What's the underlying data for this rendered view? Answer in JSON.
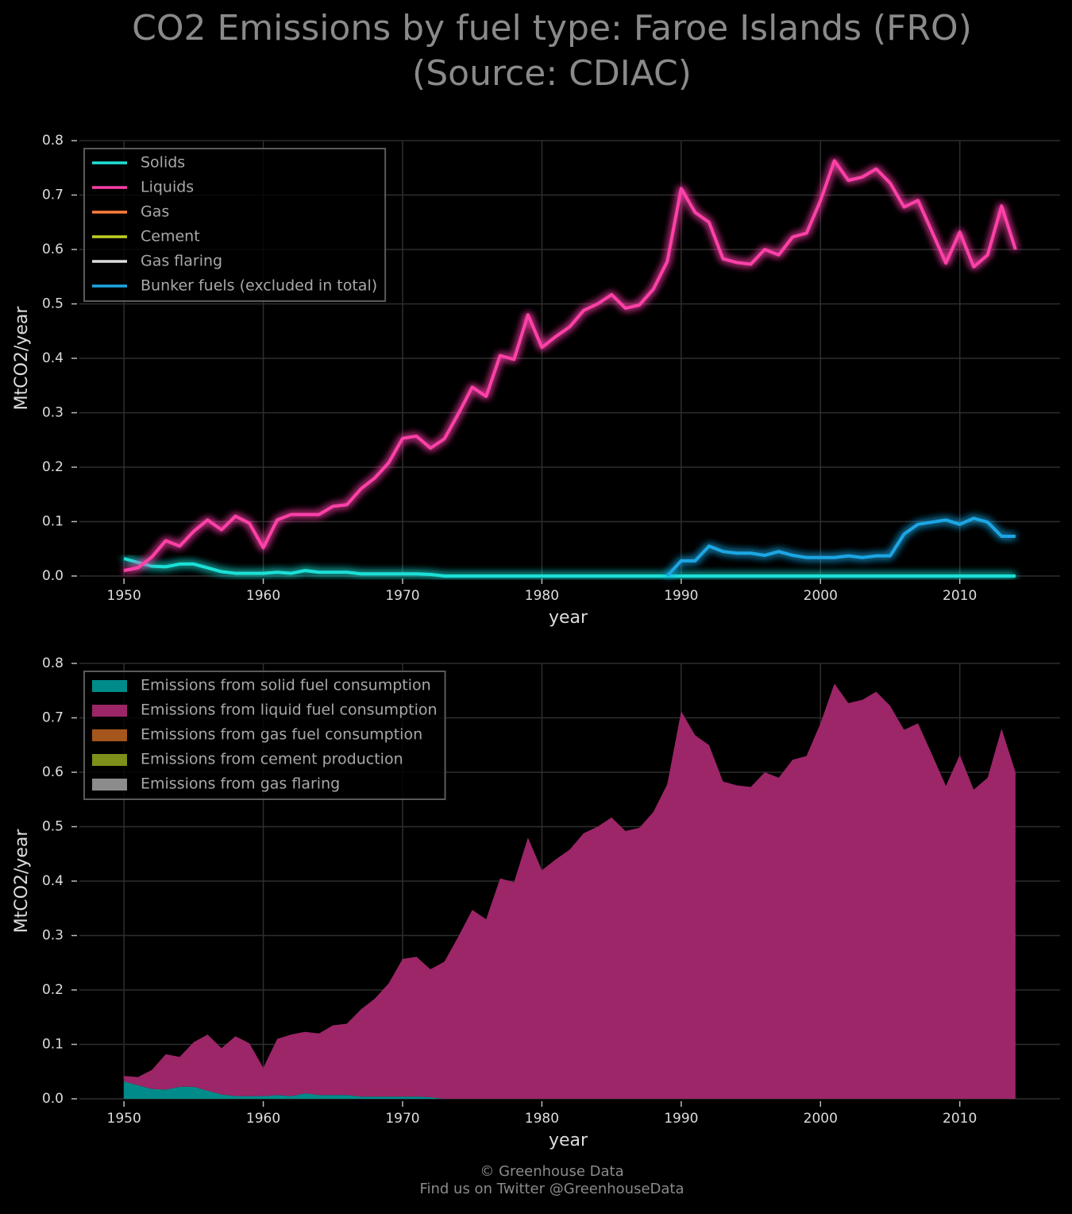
{
  "title": [
    "CO2 Emissions by fuel type: Faroe Islands (FRO)",
    "(Source: CDIAC)"
  ],
  "footer": [
    "© Greenhouse Data",
    "Find us on Twitter @GreenhouseData"
  ],
  "chart_data": [
    {
      "type": "line",
      "xlabel": "year",
      "ylabel": "MtCO2/year",
      "legend": "upper left",
      "grid": true,
      "glow": true,
      "xlim": [
        1946.8,
        2017.2
      ],
      "xticks": [
        1950,
        1960,
        1970,
        1980,
        1990,
        2000,
        2010
      ],
      "ylim": [
        0,
        0.8
      ],
      "yticks": [
        {
          "value": 0,
          "label": "0.0"
        },
        0.1,
        0.2,
        0.3,
        0.4,
        0.5,
        0.6,
        0.7,
        0.8
      ],
      "x": [
        1950,
        1951,
        1952,
        1953,
        1954,
        1955,
        1956,
        1957,
        1958,
        1959,
        1960,
        1961,
        1962,
        1963,
        1964,
        1965,
        1966,
        1967,
        1968,
        1969,
        1970,
        1971,
        1972,
        1973,
        1974,
        1975,
        1976,
        1977,
        1978,
        1979,
        1980,
        1981,
        1982,
        1983,
        1984,
        1985,
        1986,
        1987,
        1988,
        1989,
        1990,
        1991,
        1992,
        1993,
        1994,
        1995,
        1996,
        1997,
        1998,
        1999,
        2000,
        2001,
        2002,
        2003,
        2004,
        2005,
        2006,
        2007,
        2008,
        2009,
        2010,
        2011,
        2012,
        2013,
        2014
      ],
      "series": [
        {
          "name": "Solids",
          "color": "#1fe0d6",
          "values": [
            0.032,
            0.025,
            0.018,
            0.017,
            0.022,
            0.022,
            0.015,
            0.008,
            0.005,
            0.005,
            0.005,
            0.007,
            0.005,
            0.01,
            0.007,
            0.007,
            0.007,
            0.004,
            0.004,
            0.004,
            0.004,
            0.004,
            0.003,
            0,
            0,
            0,
            0,
            0,
            0,
            0,
            0,
            0,
            0,
            0,
            0,
            0,
            0,
            0,
            0,
            0,
            0,
            0,
            0,
            0,
            0,
            0,
            0,
            0,
            0,
            0,
            0,
            0,
            0,
            0,
            0,
            0,
            0,
            0,
            0,
            0,
            0,
            0,
            0,
            0,
            0
          ]
        },
        {
          "name": "Liquids",
          "color": "#ff40a8",
          "values": [
            0.01,
            0.015,
            0.035,
            0.065,
            0.055,
            0.082,
            0.103,
            0.085,
            0.11,
            0.097,
            0.052,
            0.103,
            0.113,
            0.113,
            0.113,
            0.128,
            0.131,
            0.16,
            0.18,
            0.208,
            0.253,
            0.257,
            0.235,
            0.252,
            0.298,
            0.347,
            0.33,
            0.405,
            0.398,
            0.48,
            0.42,
            0.44,
            0.458,
            0.488,
            0.5,
            0.517,
            0.492,
            0.498,
            0.527,
            0.578,
            0.712,
            0.668,
            0.65,
            0.583,
            0.576,
            0.573,
            0.6,
            0.59,
            0.623,
            0.63,
            0.69,
            0.763,
            0.727,
            0.733,
            0.748,
            0.722,
            0.678,
            0.69,
            0.633,
            0.575,
            0.632,
            0.568,
            0.59,
            0.68,
            0.6
          ]
        },
        {
          "name": "Gas",
          "color": "#ff7f3a",
          "values": [
            0,
            0,
            0,
            0,
            0,
            0,
            0,
            0,
            0,
            0,
            0,
            0,
            0,
            0,
            0,
            0,
            0,
            0,
            0,
            0,
            0,
            0,
            0,
            0,
            0,
            0,
            0,
            0,
            0,
            0,
            0,
            0,
            0,
            0,
            0,
            0,
            0,
            0,
            0,
            0,
            0,
            0,
            0,
            0,
            0,
            0,
            0,
            0,
            0,
            0,
            0,
            0,
            0,
            0,
            0,
            0,
            0,
            0,
            0,
            0,
            0,
            0,
            0,
            0,
            0
          ]
        },
        {
          "name": "Gas flaring",
          "color": "#dddddd",
          "values": [
            0,
            0,
            0,
            0,
            0,
            0,
            0,
            0,
            0,
            0,
            0,
            0,
            0,
            0,
            0,
            0,
            0,
            0,
            0,
            0,
            0,
            0,
            0,
            0,
            0,
            0,
            0,
            0,
            0,
            0,
            0,
            0,
            0,
            0,
            0,
            0,
            0,
            0,
            0,
            0,
            0,
            0,
            0,
            0,
            0,
            0,
            0,
            0,
            0,
            0,
            0,
            0,
            0,
            0,
            0,
            0,
            0,
            0,
            0,
            0,
            0,
            0,
            0,
            0,
            0
          ]
        },
        {
          "name": "Cement",
          "color": "#c2d024",
          "values": [
            0,
            0,
            0,
            0,
            0,
            0,
            0,
            0,
            0,
            0,
            0,
            0,
            0,
            0,
            0,
            0,
            0,
            0,
            0,
            0,
            0,
            0,
            0,
            0,
            0,
            0,
            0,
            0,
            0,
            0,
            0,
            0,
            0,
            0,
            0,
            0,
            0,
            0,
            0,
            0,
            0,
            0,
            0,
            0,
            0,
            0,
            0,
            0,
            0,
            0,
            0,
            0,
            0,
            0,
            0,
            0,
            0,
            0,
            0,
            0,
            0,
            0,
            0,
            0,
            0
          ]
        },
        {
          "name": "Bunker fuels (excluded in total)",
          "color": "#1ea6e4",
          "values": [
            null,
            null,
            null,
            null,
            null,
            null,
            null,
            null,
            null,
            null,
            null,
            null,
            null,
            null,
            null,
            null,
            null,
            null,
            null,
            null,
            null,
            null,
            null,
            null,
            null,
            null,
            null,
            null,
            null,
            null,
            null,
            null,
            null,
            null,
            null,
            null,
            null,
            null,
            null,
            0,
            0.028,
            0.028,
            0.055,
            0.045,
            0.042,
            0.042,
            0.038,
            0.045,
            0.038,
            0.034,
            0.034,
            0.034,
            0.037,
            0.034,
            0.037,
            0.037,
            0.077,
            0.095,
            0.099,
            0.103,
            0.095,
            0.106,
            0.099,
            0.073,
            0.073
          ]
        }
      ],
      "legend_order": [
        0,
        1,
        2,
        4,
        3,
        5
      ]
    },
    {
      "type": "stacked_area",
      "xlabel": "year",
      "ylabel": "MtCO2/year",
      "legend": "upper left",
      "grid": true,
      "xlim": [
        1946.8,
        2017.2
      ],
      "xticks": [
        1950,
        1960,
        1970,
        1980,
        1990,
        2000,
        2010
      ],
      "ylim": [
        0,
        0.8
      ],
      "yticks": [
        {
          "value": 0,
          "label": "0.0"
        },
        0.1,
        0.2,
        0.3,
        0.4,
        0.5,
        0.6,
        0.7,
        0.8
      ],
      "x": [
        1950,
        1951,
        1952,
        1953,
        1954,
        1955,
        1956,
        1957,
        1958,
        1959,
        1960,
        1961,
        1962,
        1963,
        1964,
        1965,
        1966,
        1967,
        1968,
        1969,
        1970,
        1971,
        1972,
        1973,
        1974,
        1975,
        1976,
        1977,
        1978,
        1979,
        1980,
        1981,
        1982,
        1983,
        1984,
        1985,
        1986,
        1987,
        1988,
        1989,
        1990,
        1991,
        1992,
        1993,
        1994,
        1995,
        1996,
        1997,
        1998,
        1999,
        2000,
        2001,
        2002,
        2003,
        2004,
        2005,
        2006,
        2007,
        2008,
        2009,
        2010,
        2011,
        2012,
        2013,
        2014
      ],
      "series": [
        {
          "name": "Emissions from solid fuel consumption",
          "color": "#008b8b",
          "values": [
            0.032,
            0.025,
            0.018,
            0.017,
            0.022,
            0.022,
            0.015,
            0.008,
            0.005,
            0.005,
            0.005,
            0.007,
            0.005,
            0.01,
            0.007,
            0.007,
            0.007,
            0.004,
            0.004,
            0.004,
            0.004,
            0.004,
            0.003,
            0,
            0,
            0,
            0,
            0,
            0,
            0,
            0,
            0,
            0,
            0,
            0,
            0,
            0,
            0,
            0,
            0,
            0,
            0,
            0,
            0,
            0,
            0,
            0,
            0,
            0,
            0,
            0,
            0,
            0,
            0,
            0,
            0,
            0,
            0,
            0,
            0,
            0,
            0,
            0,
            0,
            0
          ]
        },
        {
          "name": "Emissions from liquid fuel consumption",
          "color": "#9c2667",
          "values": [
            0.01,
            0.015,
            0.035,
            0.065,
            0.055,
            0.082,
            0.103,
            0.085,
            0.11,
            0.097,
            0.052,
            0.103,
            0.113,
            0.113,
            0.113,
            0.128,
            0.131,
            0.16,
            0.18,
            0.208,
            0.253,
            0.257,
            0.235,
            0.252,
            0.298,
            0.347,
            0.33,
            0.405,
            0.398,
            0.48,
            0.42,
            0.44,
            0.458,
            0.488,
            0.5,
            0.517,
            0.492,
            0.498,
            0.527,
            0.578,
            0.712,
            0.668,
            0.65,
            0.583,
            0.576,
            0.573,
            0.6,
            0.59,
            0.623,
            0.63,
            0.69,
            0.763,
            0.727,
            0.733,
            0.748,
            0.722,
            0.678,
            0.69,
            0.633,
            0.575,
            0.632,
            0.568,
            0.59,
            0.68,
            0.6
          ]
        },
        {
          "name": "Emissions from gas fuel consumption",
          "color": "#a4561c",
          "values": [
            0,
            0,
            0,
            0,
            0,
            0,
            0,
            0,
            0,
            0,
            0,
            0,
            0,
            0,
            0,
            0,
            0,
            0,
            0,
            0,
            0,
            0,
            0,
            0,
            0,
            0,
            0,
            0,
            0,
            0,
            0,
            0,
            0,
            0,
            0,
            0,
            0,
            0,
            0,
            0,
            0,
            0,
            0,
            0,
            0,
            0,
            0,
            0,
            0,
            0,
            0,
            0,
            0,
            0,
            0,
            0,
            0,
            0,
            0,
            0,
            0,
            0,
            0,
            0,
            0
          ]
        },
        {
          "name": "Emissions from cement production",
          "color": "#7e8f1a",
          "values": [
            0,
            0,
            0,
            0,
            0,
            0,
            0,
            0,
            0,
            0,
            0,
            0,
            0,
            0,
            0,
            0,
            0,
            0,
            0,
            0,
            0,
            0,
            0,
            0,
            0,
            0,
            0,
            0,
            0,
            0,
            0,
            0,
            0,
            0,
            0,
            0,
            0,
            0,
            0,
            0,
            0,
            0,
            0,
            0,
            0,
            0,
            0,
            0,
            0,
            0,
            0,
            0,
            0,
            0,
            0,
            0,
            0,
            0,
            0,
            0,
            0,
            0,
            0,
            0,
            0
          ]
        },
        {
          "name": "Emissions from gas flaring",
          "color": "#8c8c8c",
          "values": [
            0,
            0,
            0,
            0,
            0,
            0,
            0,
            0,
            0,
            0,
            0,
            0,
            0,
            0,
            0,
            0,
            0,
            0,
            0,
            0,
            0,
            0,
            0,
            0,
            0,
            0,
            0,
            0,
            0,
            0,
            0,
            0,
            0,
            0,
            0,
            0,
            0,
            0,
            0,
            0,
            0,
            0,
            0,
            0,
            0,
            0,
            0,
            0,
            0,
            0,
            0,
            0,
            0,
            0,
            0,
            0,
            0,
            0,
            0,
            0,
            0,
            0,
            0,
            0,
            0
          ]
        }
      ]
    }
  ]
}
